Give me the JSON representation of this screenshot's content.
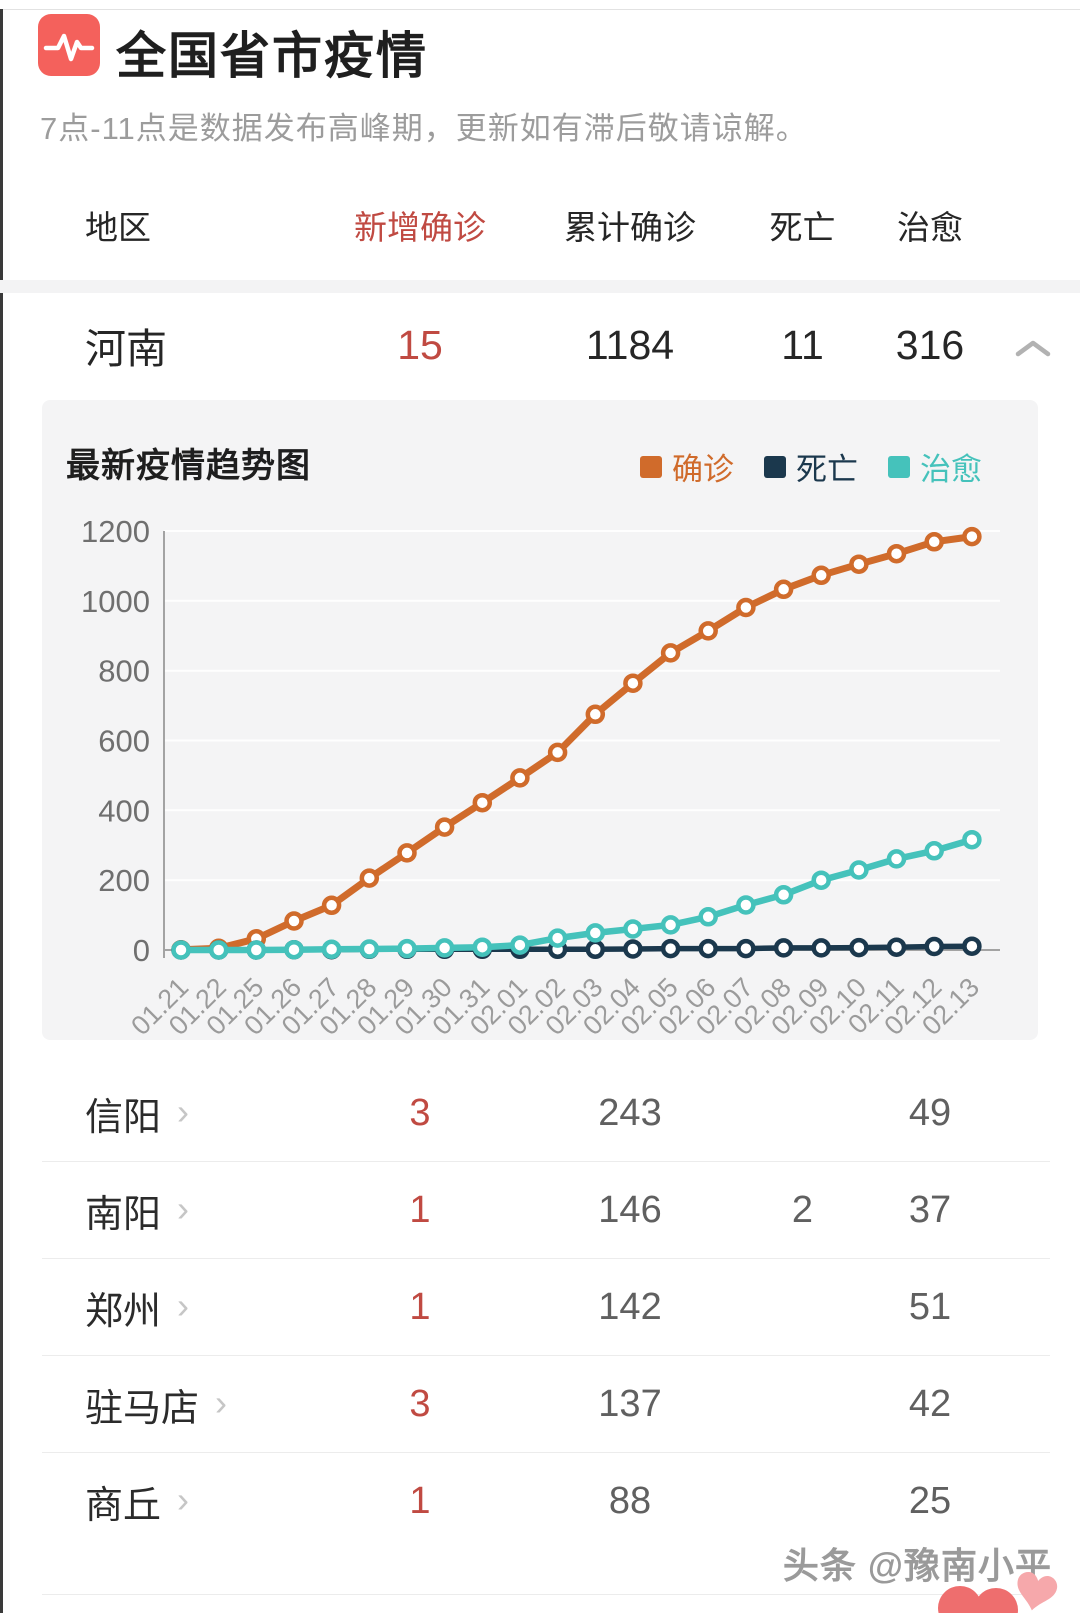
{
  "header": {
    "icon": "pulse-icon",
    "title": "全国省市疫情",
    "notice": "7点-11点是数据发布高峰期，更新如有滞后敬请谅解。"
  },
  "table": {
    "columns": {
      "region": "地区",
      "new_confirmed": "新增确诊",
      "confirmed": "累计确诊",
      "deaths": "死亡",
      "cured": "治愈"
    }
  },
  "province": {
    "name": "河南",
    "new_confirmed": "15",
    "confirmed": "1184",
    "deaths": "11",
    "cured": "316",
    "expanded": true
  },
  "chart": {
    "title": "最新疫情趋势图",
    "legend": [
      {
        "label": "确诊",
        "color": "#d06b2b"
      },
      {
        "label": "死亡",
        "color": "#1b384d"
      },
      {
        "label": "治愈",
        "color": "#45c2bb"
      }
    ]
  },
  "chart_data": {
    "type": "line",
    "title": "最新疫情趋势图",
    "x": [
      "01.21",
      "01.22",
      "01.25",
      "01.26",
      "01.27",
      "01.28",
      "01.29",
      "01.30",
      "01.31",
      "02.01",
      "02.02",
      "02.03",
      "02.04",
      "02.05",
      "02.06",
      "02.07",
      "02.08",
      "02.09",
      "02.10",
      "02.11",
      "02.12",
      "02.13"
    ],
    "series": [
      {
        "name": "确诊",
        "color": "#d06b2b",
        "values": [
          1,
          5,
          32,
          83,
          128,
          206,
          278,
          352,
          422,
          493,
          566,
          675,
          764,
          851,
          914,
          981,
          1033,
          1073,
          1105,
          1135,
          1169,
          1184
        ]
      },
      {
        "name": "死亡",
        "color": "#1b384d",
        "values": [
          0,
          0,
          0,
          1,
          1,
          2,
          2,
          2,
          2,
          2,
          2,
          2,
          3,
          4,
          4,
          4,
          6,
          6,
          7,
          8,
          10,
          11
        ]
      },
      {
        "name": "治愈",
        "color": "#45c2bb",
        "values": [
          0,
          0,
          0,
          1,
          2,
          3,
          4,
          6,
          8,
          14,
          34,
          49,
          60,
          72,
          95,
          129,
          158,
          200,
          229,
          261,
          284,
          316
        ]
      }
    ],
    "ylim": [
      0,
      1200
    ],
    "yticks": [
      0,
      200,
      400,
      600,
      800,
      1000,
      1200
    ],
    "grid": true,
    "legend_position": "top-right"
  },
  "cities": [
    {
      "name": "信阳",
      "new_confirmed": "3",
      "confirmed": "243",
      "deaths": "",
      "cured": "49"
    },
    {
      "name": "南阳",
      "new_confirmed": "1",
      "confirmed": "146",
      "deaths": "2",
      "cured": "37"
    },
    {
      "name": "郑州",
      "new_confirmed": "1",
      "confirmed": "142",
      "deaths": "",
      "cured": "51"
    },
    {
      "name": "驻马店",
      "new_confirmed": "3",
      "confirmed": "137",
      "deaths": "",
      "cured": "42"
    },
    {
      "name": "商丘",
      "new_confirmed": "1",
      "confirmed": "88",
      "deaths": "",
      "cured": "25"
    }
  ],
  "watermark": "头条 @豫南小平",
  "colors": {
    "accent_red": "#c04a42",
    "panel_bg": "#f4f4f5",
    "axis_gray": "#a3a3a3",
    "tick_label": "#6f6f6f",
    "x_label": "#9b9b9b",
    "icon_bg": "#f4615c",
    "heart_pink": "#f6a8ab",
    "heart_coral": "#ee6e6e"
  }
}
